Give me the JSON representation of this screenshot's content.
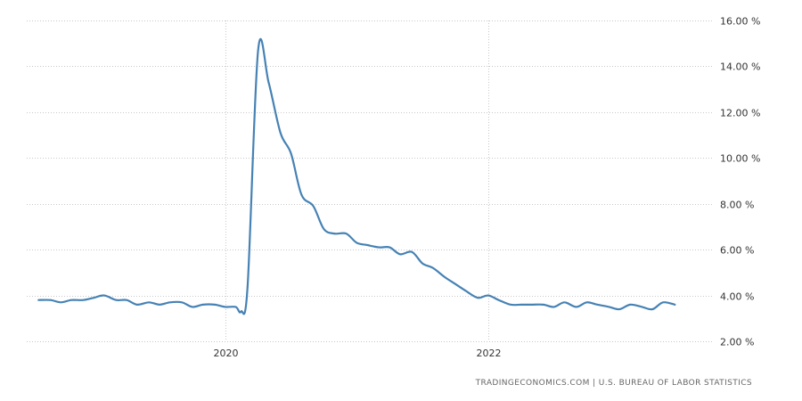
{
  "chart_data": {
    "type": "line",
    "title": "",
    "xlabel": "",
    "ylabel": "",
    "x_ticks": [
      {
        "label": "2020",
        "value": 2020.0
      },
      {
        "label": "2022",
        "value": 2022.0
      }
    ],
    "y_ticks": [
      {
        "label": "2.00 %",
        "value": 2
      },
      {
        "label": "4.00 %",
        "value": 4
      },
      {
        "label": "6.00 %",
        "value": 6
      },
      {
        "label": "8.00 %",
        "value": 8
      },
      {
        "label": "10.00 %",
        "value": 10
      },
      {
        "label": "12.00 %",
        "value": 12
      },
      {
        "label": "14.00 %",
        "value": 14
      },
      {
        "label": "16.00 %",
        "value": 16
      }
    ],
    "xlim": [
      2018.49,
      2023.75
    ],
    "ylim": [
      2,
      16
    ],
    "grid": true,
    "legend": "none",
    "series": [
      {
        "color": "#4682b4",
        "points": [
          {
            "x": 2018.58,
            "y": 3.8
          },
          {
            "x": 2018.67,
            "y": 3.8
          },
          {
            "x": 2018.75,
            "y": 3.7
          },
          {
            "x": 2018.83,
            "y": 3.8
          },
          {
            "x": 2018.92,
            "y": 3.8
          },
          {
            "x": 2019.0,
            "y": 3.9
          },
          {
            "x": 2019.08,
            "y": 4.0
          },
          {
            "x": 2019.17,
            "y": 3.8
          },
          {
            "x": 2019.25,
            "y": 3.8
          },
          {
            "x": 2019.33,
            "y": 3.6
          },
          {
            "x": 2019.42,
            "y": 3.7
          },
          {
            "x": 2019.5,
            "y": 3.6
          },
          {
            "x": 2019.58,
            "y": 3.7
          },
          {
            "x": 2019.67,
            "y": 3.7
          },
          {
            "x": 2019.75,
            "y": 3.5
          },
          {
            "x": 2019.83,
            "y": 3.6
          },
          {
            "x": 2019.92,
            "y": 3.6
          },
          {
            "x": 2020.0,
            "y": 3.5
          },
          {
            "x": 2020.08,
            "y": 3.5
          },
          {
            "x": 2020.12,
            "y": 3.3
          },
          {
            "x": 2020.17,
            "y": 4.4
          },
          {
            "x": 2020.25,
            "y": 14.7
          },
          {
            "x": 2020.33,
            "y": 13.3
          },
          {
            "x": 2020.42,
            "y": 11.1
          },
          {
            "x": 2020.5,
            "y": 10.2
          },
          {
            "x": 2020.58,
            "y": 8.4
          },
          {
            "x": 2020.67,
            "y": 7.9
          },
          {
            "x": 2020.75,
            "y": 6.9
          },
          {
            "x": 2020.83,
            "y": 6.7
          },
          {
            "x": 2020.92,
            "y": 6.7
          },
          {
            "x": 2021.0,
            "y": 6.3
          },
          {
            "x": 2021.08,
            "y": 6.2
          },
          {
            "x": 2021.17,
            "y": 6.1
          },
          {
            "x": 2021.25,
            "y": 6.1
          },
          {
            "x": 2021.33,
            "y": 5.8
          },
          {
            "x": 2021.42,
            "y": 5.9
          },
          {
            "x": 2021.5,
            "y": 5.4
          },
          {
            "x": 2021.58,
            "y": 5.2
          },
          {
            "x": 2021.67,
            "y": 4.8
          },
          {
            "x": 2021.75,
            "y": 4.5
          },
          {
            "x": 2021.83,
            "y": 4.2
          },
          {
            "x": 2021.92,
            "y": 3.9
          },
          {
            "x": 2022.0,
            "y": 4.0
          },
          {
            "x": 2022.08,
            "y": 3.8
          },
          {
            "x": 2022.17,
            "y": 3.6
          },
          {
            "x": 2022.25,
            "y": 3.6
          },
          {
            "x": 2022.33,
            "y": 3.6
          },
          {
            "x": 2022.42,
            "y": 3.6
          },
          {
            "x": 2022.5,
            "y": 3.5
          },
          {
            "x": 2022.58,
            "y": 3.7
          },
          {
            "x": 2022.67,
            "y": 3.5
          },
          {
            "x": 2022.75,
            "y": 3.7
          },
          {
            "x": 2022.83,
            "y": 3.6
          },
          {
            "x": 2022.92,
            "y": 3.5
          },
          {
            "x": 2023.0,
            "y": 3.4
          },
          {
            "x": 2023.08,
            "y": 3.6
          },
          {
            "x": 2023.17,
            "y": 3.5
          },
          {
            "x": 2023.25,
            "y": 3.4
          },
          {
            "x": 2023.33,
            "y": 3.7
          },
          {
            "x": 2023.42,
            "y": 3.6
          }
        ]
      }
    ]
  },
  "source": {
    "text": "TRADINGECONOMICS.COM  |  U.S. BUREAU OF LABOR STATISTICS"
  }
}
